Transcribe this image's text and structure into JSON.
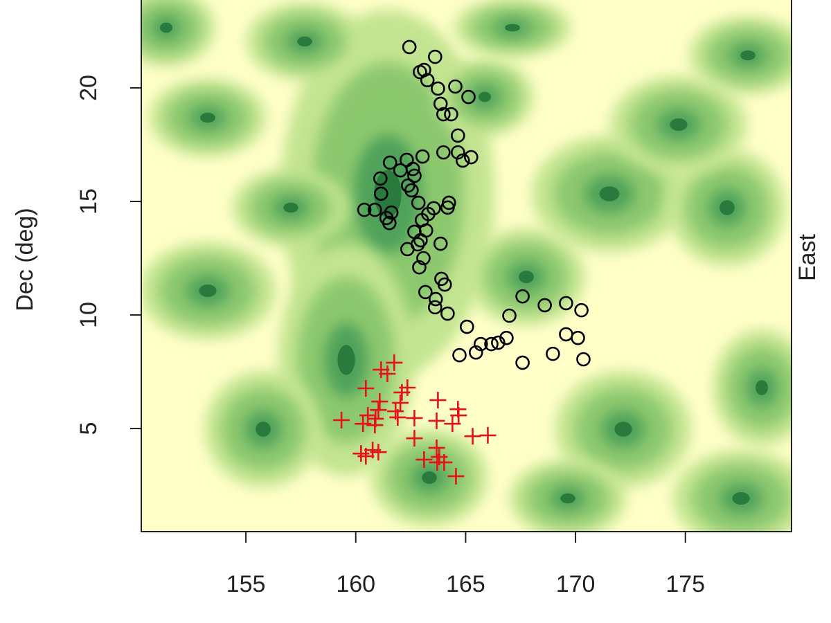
{
  "chart_data": {
    "type": "scatter",
    "ylabel": "Dec (deg)",
    "right_label": "East",
    "xlim": [
      150.24,
      179.83
    ],
    "ylim": [
      0.46,
      23.87
    ],
    "xticks": [
      155,
      160,
      165,
      170,
      175
    ],
    "yticks": [
      5,
      10,
      15,
      20
    ],
    "series": [
      {
        "color": "#000000",
        "marker": "circle",
        "x": [
          162.44,
          163.61,
          162.92,
          163.11,
          163.26,
          163.74,
          164.53,
          165.13,
          163.86,
          163.99,
          164.34,
          163.99,
          164.65,
          164.65,
          164.87,
          165.25,
          161.56,
          162.32,
          163.04,
          162.6,
          162.67,
          162.38,
          162.54,
          162.03,
          161.12,
          161.15,
          160.39,
          160.87,
          161.4,
          161.62,
          161.53,
          162.85,
          163.3,
          163.55,
          163.01,
          163.2,
          164.24,
          164.18,
          162.67,
          162.35,
          162.82,
          162.95,
          163.08,
          162.89,
          163.86,
          163.9,
          164.05,
          163.17,
          163.64,
          163.61,
          164.18,
          165.06,
          164.72,
          165.47,
          165.69,
          166.17,
          166.48,
          166.86,
          166.99,
          167.59,
          168.6,
          169.57,
          170.27,
          169.57,
          170.11,
          168.97,
          170.36,
          167.59
        ],
        "y": [
          21.8,
          21.37,
          20.7,
          20.79,
          20.34,
          19.97,
          20.06,
          19.6,
          19.3,
          18.84,
          18.84,
          17.16,
          17.9,
          17.16,
          16.8,
          16.95,
          16.71,
          16.83,
          16.98,
          16.43,
          16.13,
          15.7,
          15.49,
          16.37,
          16.01,
          15.34,
          14.63,
          14.63,
          14.27,
          14.51,
          14.05,
          14.94,
          14.45,
          14.7,
          14.18,
          13.72,
          14.94,
          14.73,
          13.66,
          12.9,
          13.11,
          13.29,
          12.5,
          12.1,
          13.14,
          11.59,
          11.34,
          11.01,
          10.7,
          10.34,
          10.06,
          9.48,
          8.23,
          8.35,
          8.72,
          8.72,
          8.78,
          8.99,
          9.97,
          10.82,
          10.43,
          10.52,
          10.21,
          9.15,
          8.99,
          8.29,
          8.05,
          7.9
        ]
      },
      {
        "color": "#e8101a",
        "marker": "plus",
        "x": [
          161.75,
          161.15,
          161.44,
          162.35,
          162.1,
          160.46,
          161.09,
          162.03,
          161.81,
          161.03,
          160.55,
          160.9,
          161.91,
          162.67,
          159.35,
          160.33,
          160.87,
          163.74,
          164.65,
          164.68,
          163.68,
          164.4,
          162.67,
          165.32,
          166.01,
          160.24,
          160.46,
          161.03,
          160.77,
          163.11,
          163.8,
          163.71,
          164.02,
          164.56,
          163.68
        ],
        "y": [
          7.9,
          7.59,
          7.41,
          6.8,
          6.59,
          6.77,
          6.19,
          6.13,
          5.76,
          5.82,
          5.58,
          5.43,
          5.49,
          5.46,
          5.37,
          5.21,
          5.15,
          6.25,
          5.85,
          5.58,
          5.34,
          5.21,
          4.57,
          4.66,
          4.7,
          3.9,
          3.78,
          3.96,
          4.05,
          3.63,
          3.75,
          3.51,
          3.51,
          2.9,
          4.15
        ]
      }
    ]
  }
}
